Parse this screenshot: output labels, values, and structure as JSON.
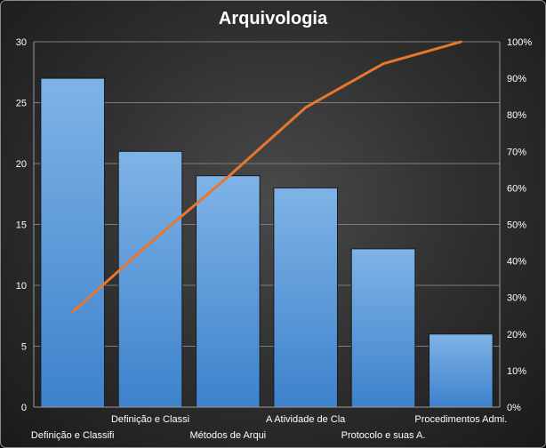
{
  "chart_data": {
    "type": "bar",
    "title": "Arquivologia",
    "categories": [
      "Definição e Classifi",
      "Definição e Classi",
      "Métodos de Arqui",
      "A Atividade de Cla",
      "Protocolo e suas A.",
      "Procedimentos Admi."
    ],
    "values": [
      27,
      21,
      19,
      18,
      13,
      6
    ],
    "ylim": [
      0,
      30
    ],
    "yticks": [
      "0",
      "5",
      "10",
      "15",
      "20",
      "25",
      "30"
    ],
    "y2lim": [
      0,
      1
    ],
    "y2ticks": [
      "0%",
      "10%",
      "20%",
      "30%",
      "40%",
      "50%",
      "60%",
      "70%",
      "80%",
      "90%",
      "100%"
    ],
    "cumulative": [
      0.26,
      0.45,
      0.63,
      0.82,
      0.94,
      1.0
    ],
    "grid": true,
    "colors": {
      "bar": "#4f93d8",
      "line": "#e8772e"
    }
  }
}
